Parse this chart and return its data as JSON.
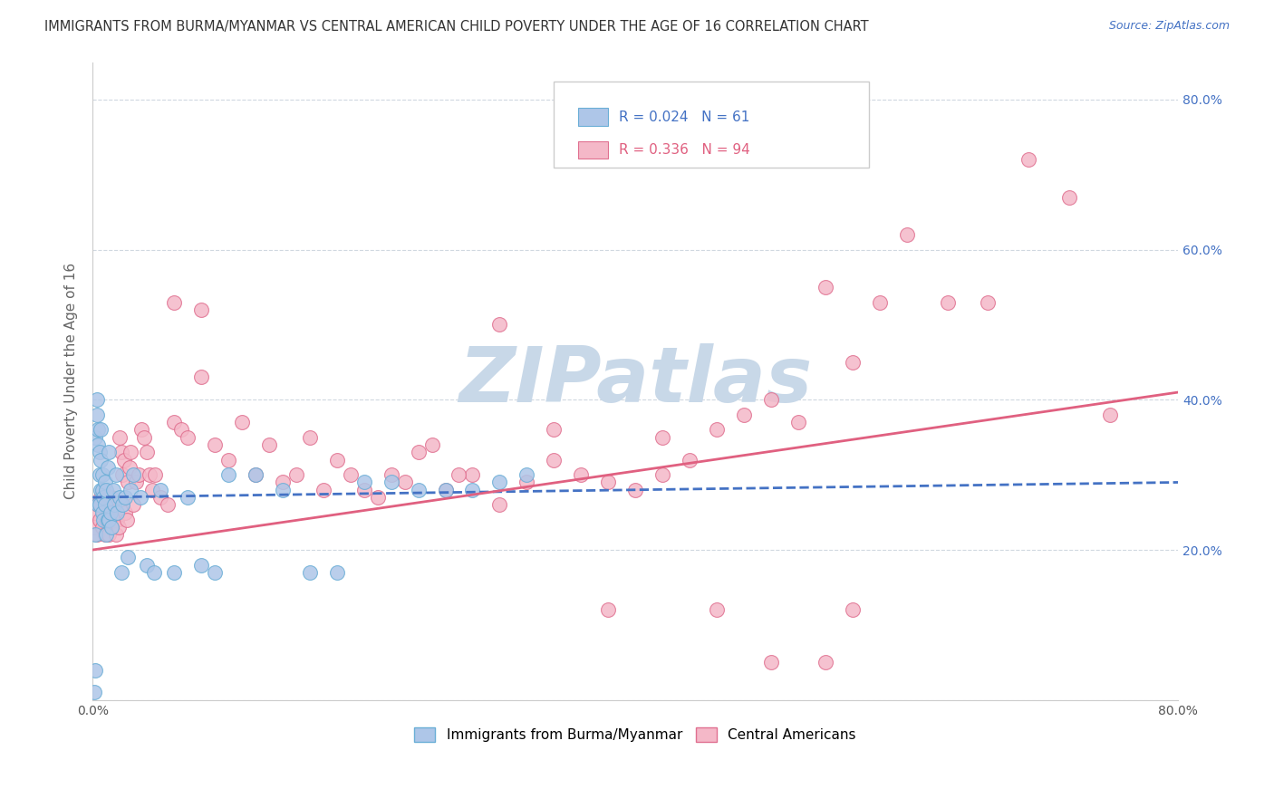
{
  "title": "IMMIGRANTS FROM BURMA/MYANMAR VS CENTRAL AMERICAN CHILD POVERTY UNDER THE AGE OF 16 CORRELATION CHART",
  "source": "Source: ZipAtlas.com",
  "ylabel": "Child Poverty Under the Age of 16",
  "xlim": [
    0.0,
    0.8
  ],
  "ylim": [
    0.0,
    0.85
  ],
  "series1_color": "#aec6e8",
  "series1_edge": "#6aaed6",
  "series2_color": "#f4b8c8",
  "series2_edge": "#e07090",
  "line1_color": "#4472c4",
  "line2_color": "#e06080",
  "watermark_color": "#c8d8e8",
  "source_color": "#4472c4",
  "right_tick_color": "#4472c4",
  "grid_color": "#d0d8e0",
  "legend_r1": "0.024",
  "legend_n1": "61",
  "legend_r2": "0.336",
  "legend_n2": "94",
  "blue_scatter_x": [
    0.001,
    0.002,
    0.002,
    0.003,
    0.003,
    0.004,
    0.004,
    0.004,
    0.005,
    0.005,
    0.005,
    0.006,
    0.006,
    0.006,
    0.007,
    0.007,
    0.007,
    0.008,
    0.008,
    0.009,
    0.009,
    0.01,
    0.01,
    0.011,
    0.011,
    0.012,
    0.012,
    0.013,
    0.014,
    0.015,
    0.016,
    0.017,
    0.018,
    0.02,
    0.021,
    0.022,
    0.024,
    0.026,
    0.028,
    0.03,
    0.035,
    0.04,
    0.045,
    0.05,
    0.06,
    0.07,
    0.08,
    0.09,
    0.1,
    0.12,
    0.14,
    0.16,
    0.18,
    0.2,
    0.22,
    0.24,
    0.26,
    0.28,
    0.3,
    0.32,
    0.002
  ],
  "blue_scatter_y": [
    0.01,
    0.22,
    0.35,
    0.38,
    0.4,
    0.34,
    0.36,
    0.26,
    0.3,
    0.33,
    0.26,
    0.28,
    0.32,
    0.36,
    0.3,
    0.28,
    0.25,
    0.27,
    0.24,
    0.26,
    0.29,
    0.22,
    0.28,
    0.24,
    0.31,
    0.24,
    0.33,
    0.25,
    0.23,
    0.28,
    0.26,
    0.3,
    0.25,
    0.27,
    0.17,
    0.26,
    0.27,
    0.19,
    0.28,
    0.3,
    0.27,
    0.18,
    0.17,
    0.28,
    0.17,
    0.27,
    0.18,
    0.17,
    0.3,
    0.3,
    0.28,
    0.17,
    0.17,
    0.29,
    0.29,
    0.28,
    0.28,
    0.28,
    0.29,
    0.3,
    0.04
  ],
  "pink_scatter_x": [
    0.001,
    0.002,
    0.003,
    0.004,
    0.005,
    0.006,
    0.007,
    0.008,
    0.009,
    0.01,
    0.011,
    0.012,
    0.013,
    0.014,
    0.015,
    0.016,
    0.017,
    0.018,
    0.019,
    0.02,
    0.021,
    0.022,
    0.023,
    0.024,
    0.025,
    0.026,
    0.027,
    0.028,
    0.03,
    0.032,
    0.034,
    0.036,
    0.038,
    0.04,
    0.042,
    0.044,
    0.046,
    0.05,
    0.055,
    0.06,
    0.065,
    0.07,
    0.08,
    0.09,
    0.1,
    0.11,
    0.12,
    0.13,
    0.14,
    0.15,
    0.16,
    0.17,
    0.18,
    0.19,
    0.2,
    0.22,
    0.24,
    0.26,
    0.28,
    0.3,
    0.32,
    0.34,
    0.36,
    0.38,
    0.4,
    0.42,
    0.44,
    0.46,
    0.48,
    0.5,
    0.52,
    0.54,
    0.56,
    0.58,
    0.6,
    0.63,
    0.66,
    0.69,
    0.72,
    0.75,
    0.42,
    0.46,
    0.38,
    0.34,
    0.5,
    0.54,
    0.56,
    0.3,
    0.27,
    0.25,
    0.23,
    0.21,
    0.06,
    0.08
  ],
  "pink_scatter_y": [
    0.23,
    0.25,
    0.22,
    0.26,
    0.24,
    0.27,
    0.23,
    0.25,
    0.22,
    0.24,
    0.26,
    0.22,
    0.24,
    0.27,
    0.25,
    0.24,
    0.22,
    0.24,
    0.23,
    0.35,
    0.33,
    0.3,
    0.32,
    0.25,
    0.24,
    0.29,
    0.31,
    0.33,
    0.26,
    0.29,
    0.3,
    0.36,
    0.35,
    0.33,
    0.3,
    0.28,
    0.3,
    0.27,
    0.26,
    0.37,
    0.36,
    0.35,
    0.43,
    0.34,
    0.32,
    0.37,
    0.3,
    0.34,
    0.29,
    0.3,
    0.35,
    0.28,
    0.32,
    0.3,
    0.28,
    0.3,
    0.33,
    0.28,
    0.3,
    0.26,
    0.29,
    0.32,
    0.3,
    0.29,
    0.28,
    0.3,
    0.32,
    0.36,
    0.38,
    0.4,
    0.37,
    0.55,
    0.45,
    0.53,
    0.62,
    0.53,
    0.53,
    0.72,
    0.67,
    0.38,
    0.35,
    0.12,
    0.12,
    0.36,
    0.05,
    0.05,
    0.12,
    0.5,
    0.3,
    0.34,
    0.29,
    0.27,
    0.53,
    0.52
  ],
  "line1_x": [
    0.0,
    0.8
  ],
  "line1_y": [
    0.27,
    0.29
  ],
  "line2_x": [
    0.0,
    0.8
  ],
  "line2_y": [
    0.2,
    0.41
  ]
}
